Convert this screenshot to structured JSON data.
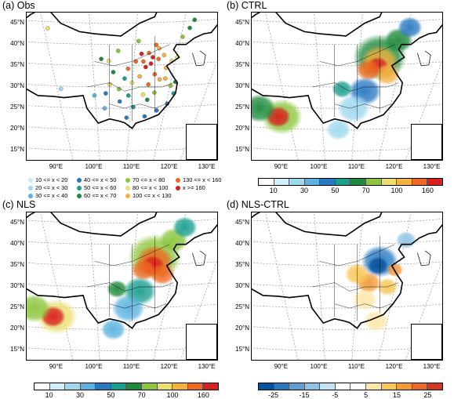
{
  "panels": {
    "obs": {
      "title": "(a) Obs"
    },
    "ctrl": {
      "title": "(b) CTRL"
    },
    "nls": {
      "title": "(c) NLS"
    },
    "diff": {
      "title": "(d) NLS-CTRL"
    }
  },
  "axes": {
    "lat_labels": [
      "45°N",
      "40°N",
      "35°N",
      "30°N",
      "25°N",
      "20°N",
      "15°N"
    ],
    "lon_labels": [
      "90°E",
      "100°E",
      "110°E",
      "120°E",
      "130°E"
    ]
  },
  "obs_legend": [
    {
      "label": "10 <= x < 20",
      "color": "#c8ecf8"
    },
    {
      "label": "20 <= x < 30",
      "color": "#9fd8ef"
    },
    {
      "label": "30 <= x < 40",
      "color": "#5bb2e0"
    },
    {
      "label": "40 <= x < 50",
      "color": "#2a78c2"
    },
    {
      "label": "50 <= x < 60",
      "color": "#1a9e8e"
    },
    {
      "label": "60 <= x < 70",
      "color": "#1e8a3c"
    },
    {
      "label": "70 <= x < 80",
      "color": "#8cc63e"
    },
    {
      "label": "80 <= x < 100",
      "color": "#e9e071"
    },
    {
      "label": "100 <= x < 130",
      "color": "#f4b040"
    },
    {
      "label": "130 <= x < 160",
      "color": "#ee6a24"
    },
    {
      "label": "x >= 160",
      "color": "#d92020"
    }
  ],
  "conc_colorbar": {
    "colors": [
      "#ffffff",
      "#cfeefa",
      "#9fd8ef",
      "#5bb2e0",
      "#2a78c2",
      "#1a9e8e",
      "#1e8a3c",
      "#8cc63e",
      "#e9e071",
      "#f4b040",
      "#ee6a24",
      "#d92020"
    ],
    "ticks": [
      "10",
      "30",
      "50",
      "70",
      "100",
      "160"
    ]
  },
  "diff_colorbar": {
    "colors": [
      "#08519c",
      "#2879c0",
      "#5aa0d6",
      "#8fc4e6",
      "#c6e1f2",
      "#ffffff",
      "#ffffff",
      "#fde7a6",
      "#f9c658",
      "#f39a3a",
      "#e8692a",
      "#d4361e"
    ],
    "ticks": [
      "-25",
      "-15",
      "-5",
      "5",
      "15",
      "25"
    ]
  },
  "fields": {
    "obs_sites": [
      {
        "lon": 112.5,
        "lat": 37.8,
        "c": 10
      },
      {
        "lon": 114.5,
        "lat": 38.0,
        "c": 9
      },
      {
        "lon": 116.4,
        "lat": 39.9,
        "c": 9
      },
      {
        "lon": 117.2,
        "lat": 39.1,
        "c": 8
      },
      {
        "lon": 113.6,
        "lat": 34.7,
        "c": 10
      },
      {
        "lon": 117.0,
        "lat": 36.6,
        "c": 9
      },
      {
        "lon": 118.8,
        "lat": 32.0,
        "c": 8
      },
      {
        "lon": 112.9,
        "lat": 28.2,
        "c": 7
      },
      {
        "lon": 114.3,
        "lat": 30.6,
        "c": 9
      },
      {
        "lon": 108.9,
        "lat": 34.3,
        "c": 9
      },
      {
        "lon": 104.1,
        "lat": 30.6,
        "c": 7
      },
      {
        "lon": 106.5,
        "lat": 29.5,
        "c": 6
      },
      {
        "lon": 121.5,
        "lat": 31.2,
        "c": 5
      },
      {
        "lon": 120.2,
        "lat": 30.3,
        "c": 6
      },
      {
        "lon": 113.3,
        "lat": 23.1,
        "c": 3
      },
      {
        "lon": 110.3,
        "lat": 25.3,
        "c": 4
      },
      {
        "lon": 102.7,
        "lat": 25.0,
        "c": 2
      },
      {
        "lon": 106.7,
        "lat": 26.6,
        "c": 3
      },
      {
        "lon": 119.3,
        "lat": 26.1,
        "c": 3
      },
      {
        "lon": 115.9,
        "lat": 28.7,
        "c": 6
      },
      {
        "lon": 117.3,
        "lat": 31.8,
        "c": 8
      },
      {
        "lon": 111.7,
        "lat": 40.8,
        "c": 6
      },
      {
        "lon": 103.8,
        "lat": 36.1,
        "c": 7
      },
      {
        "lon": 101.8,
        "lat": 36.6,
        "c": 5
      },
      {
        "lon": 106.3,
        "lat": 38.5,
        "c": 6
      },
      {
        "lon": 123.4,
        "lat": 41.8,
        "c": 6
      },
      {
        "lon": 125.3,
        "lat": 43.9,
        "c": 5
      },
      {
        "lon": 126.6,
        "lat": 45.8,
        "c": 5
      },
      {
        "lon": 87.6,
        "lat": 43.8,
        "c": 7
      },
      {
        "lon": 91.1,
        "lat": 29.6,
        "c": 1
      },
      {
        "lon": 110.0,
        "lat": 31.0,
        "c": 7
      },
      {
        "lon": 115.0,
        "lat": 35.5,
        "c": 10
      },
      {
        "lon": 119.0,
        "lat": 34.5,
        "c": 8
      },
      {
        "lon": 116.0,
        "lat": 33.0,
        "c": 9
      },
      {
        "lon": 111.0,
        "lat": 36.0,
        "c": 9
      },
      {
        "lon": 108.0,
        "lat": 32.0,
        "c": 4
      },
      {
        "lon": 105.0,
        "lat": 33.5,
        "c": 5
      },
      {
        "lon": 112.0,
        "lat": 32.5,
        "c": 8
      },
      {
        "lon": 118.5,
        "lat": 37.5,
        "c": 8
      },
      {
        "lon": 114.0,
        "lat": 27.0,
        "c": 5
      },
      {
        "lon": 109.0,
        "lat": 28.0,
        "c": 4
      },
      {
        "lon": 100.0,
        "lat": 28.0,
        "c": 2
      },
      {
        "lon": 103.0,
        "lat": 28.5,
        "c": 3
      },
      {
        "lon": 121.0,
        "lat": 28.5,
        "c": 4
      },
      {
        "lon": 116.5,
        "lat": 24.5,
        "c": 3
      },
      {
        "lon": 108.5,
        "lat": 22.8,
        "c": 3
      },
      {
        "lon": 122.0,
        "lat": 37.0,
        "c": 7
      },
      {
        "lon": 120.5,
        "lat": 36.1,
        "c": 7
      },
      {
        "lon": 113.0,
        "lat": 36.0,
        "c": 9
      },
      {
        "lon": 115.5,
        "lat": 37.0,
        "c": 10
      }
    ],
    "ctrl_blobs": [
      {
        "lon": 116,
        "lat": 37,
        "r": 6.5,
        "c": 6
      },
      {
        "lon": 116,
        "lat": 36,
        "r": 4.5,
        "c": 9
      },
      {
        "lon": 115.5,
        "lat": 35,
        "r": 2.5,
        "c": 11
      },
      {
        "lon": 118,
        "lat": 33,
        "r": 3,
        "c": 9
      },
      {
        "lon": 113,
        "lat": 34,
        "r": 3,
        "c": 10
      },
      {
        "lon": 121,
        "lat": 41,
        "r": 3.5,
        "c": 6
      },
      {
        "lon": 124,
        "lat": 44,
        "r": 3,
        "c": 4
      },
      {
        "lon": 112,
        "lat": 29,
        "r": 4,
        "c": 4
      },
      {
        "lon": 106,
        "lat": 29.5,
        "r": 2.5,
        "c": 5
      },
      {
        "lon": 109,
        "lat": 25,
        "r": 4,
        "c": 2
      },
      {
        "lon": 90,
        "lat": 23,
        "r": 5,
        "c": 7
      },
      {
        "lon": 89,
        "lat": 23,
        "r": 3,
        "c": 11
      },
      {
        "lon": 84,
        "lat": 25,
        "r": 4,
        "c": 6
      },
      {
        "lon": 105,
        "lat": 20,
        "r": 3,
        "c": 2
      }
    ],
    "nls_blobs": [
      {
        "lon": 116,
        "lat": 37,
        "r": 6.5,
        "c": 7
      },
      {
        "lon": 116,
        "lat": 36,
        "r": 4.5,
        "c": 10
      },
      {
        "lon": 115.5,
        "lat": 35,
        "r": 2.8,
        "c": 11
      },
      {
        "lon": 118,
        "lat": 33,
        "r": 3,
        "c": 10
      },
      {
        "lon": 113,
        "lat": 34,
        "r": 3,
        "c": 10
      },
      {
        "lon": 121,
        "lat": 41,
        "r": 3.5,
        "c": 7
      },
      {
        "lon": 124,
        "lat": 44,
        "r": 3,
        "c": 5
      },
      {
        "lon": 112,
        "lat": 29,
        "r": 4,
        "c": 5
      },
      {
        "lon": 106,
        "lat": 29.5,
        "r": 2.5,
        "c": 6
      },
      {
        "lon": 109,
        "lat": 25,
        "r": 4,
        "c": 3
      },
      {
        "lon": 90,
        "lat": 23,
        "r": 5,
        "c": 8
      },
      {
        "lon": 89,
        "lat": 23,
        "r": 3,
        "c": 11
      },
      {
        "lon": 84,
        "lat": 25,
        "r": 4,
        "c": 7
      },
      {
        "lon": 105,
        "lat": 20,
        "r": 3,
        "c": 3
      }
    ],
    "diff_blobs": [
      {
        "lon": 116,
        "lat": 36,
        "r": 4.5,
        "c": 1
      },
      {
        "lon": 115.5,
        "lat": 35,
        "r": 2.5,
        "c": 0
      },
      {
        "lon": 113,
        "lat": 31,
        "r": 3,
        "c": 9
      },
      {
        "lon": 110,
        "lat": 33,
        "r": 3,
        "c": 8
      },
      {
        "lon": 118,
        "lat": 30,
        "r": 2.5,
        "c": 8
      },
      {
        "lon": 120,
        "lat": 34,
        "r": 2,
        "c": 9
      },
      {
        "lon": 123,
        "lat": 41,
        "r": 2.5,
        "c": 3
      },
      {
        "lon": 112,
        "lat": 27,
        "r": 3,
        "c": 7
      },
      {
        "lon": 115,
        "lat": 22,
        "r": 3,
        "c": 7
      }
    ]
  }
}
